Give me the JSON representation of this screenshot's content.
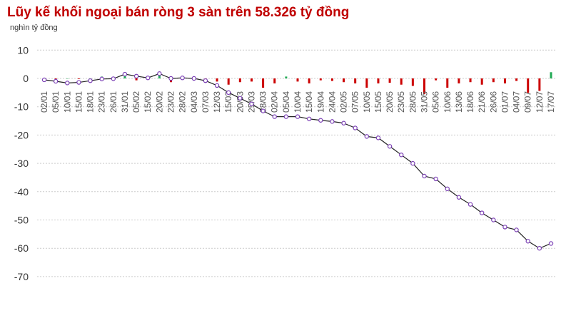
{
  "chart_data": {
    "type": "line",
    "title": "Lũy kế khối ngoại bán ròng 3 sàn trên 58.326 tỷ đồng",
    "ylabel": "nghìn tỷ đồng",
    "ylim": [
      -70,
      10
    ],
    "yticks": [
      10,
      0,
      -10,
      -20,
      -30,
      -40,
      -50,
      -60,
      -70
    ],
    "grid": true,
    "colors": {
      "line": "#222222",
      "marker": "#7b3fb5",
      "bar_negative": "#cc0000",
      "bar_positive": "#22aa55",
      "title": "#c00000"
    },
    "x": [
      "02/01",
      "05/01",
      "10/01",
      "15/01",
      "18/01",
      "23/01",
      "26/01",
      "31/01",
      "05/02",
      "15/02",
      "20/02",
      "23/02",
      "28/02",
      "04/03",
      "07/03",
      "12/03",
      "15/03",
      "20/03",
      "25/03",
      "28/03",
      "02/04",
      "05/04",
      "10/04",
      "15/04",
      "19/04",
      "24/04",
      "02/05",
      "07/05",
      "10/05",
      "15/05",
      "20/05",
      "23/05",
      "28/05",
      "31/05",
      "05/06",
      "10/06",
      "13/06",
      "18/06",
      "21/06",
      "26/06",
      "01/07",
      "04/07",
      "09/07",
      "12/07",
      "17/07"
    ],
    "series": [
      {
        "type": "line",
        "values": [
          -0.5,
          -1.0,
          -1.6,
          -1.4,
          -0.8,
          -0.2,
          -0.1,
          1.5,
          0.8,
          0.2,
          1.7,
          0,
          0.2,
          0,
          -0.8,
          -2.5,
          -5,
          -7,
          -9,
          -11.5,
          -13.5,
          -13.5,
          -13.5,
          -14.3,
          -14.8,
          -15.2,
          -15.8,
          -17.5,
          -20.5,
          -21,
          -24,
          -27,
          -30,
          -34.5,
          -35.5,
          -39,
          -42,
          -44.5,
          -47.5,
          -50,
          -52.5,
          -53.5,
          -57.5,
          -60,
          -58.3
        ]
      },
      {
        "type": "bar",
        "values": [
          -0.1,
          -0.2,
          0,
          -0.1,
          0,
          0.3,
          0,
          0.5,
          -0.3,
          -0.2,
          0.5,
          -0.6,
          0,
          0,
          -0.3,
          -0.5,
          -1.0,
          -0.6,
          -0.5,
          -1.5,
          -0.8,
          0.3,
          -0.5,
          -0.8,
          -0.3,
          -0.4,
          -0.6,
          -0.8,
          -1.5,
          -0.8,
          -0.7,
          -1.0,
          -1.2,
          -2.5,
          -0.3,
          -1.5,
          -0.8,
          -0.6,
          -1.0,
          -0.6,
          -0.8,
          -0.4,
          -2.3,
          -2.0,
          1.0
        ]
      }
    ]
  }
}
